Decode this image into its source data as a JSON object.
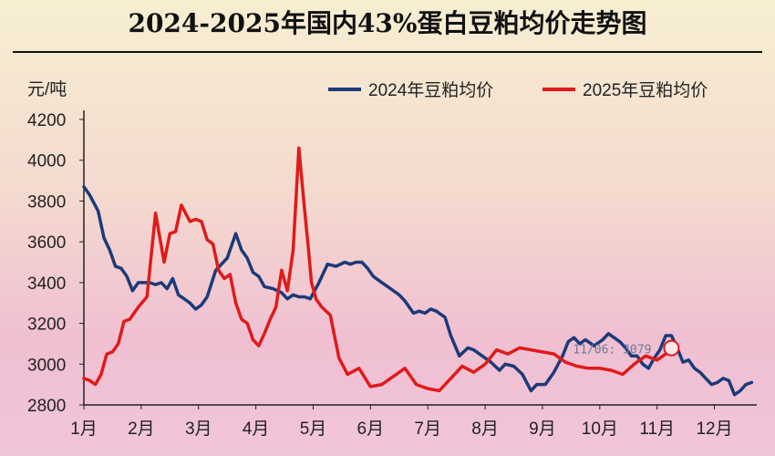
{
  "chart_data": {
    "type": "line",
    "title": "2024-2025年国内43%蛋白豆粕均价走势图",
    "ylabel": "元/吨",
    "xlabel": "",
    "ylim": [
      2800,
      4200
    ],
    "yticks": [
      2800,
      3000,
      3200,
      3400,
      3600,
      3800,
      4000,
      4200
    ],
    "categories": [
      "1月",
      "2月",
      "3月",
      "4月",
      "5月",
      "6月",
      "7月",
      "8月",
      "9月",
      "10月",
      "11月",
      "12月"
    ],
    "grid": false,
    "legend_position": "top-right",
    "annotation": {
      "label": "11/06: 3079",
      "x": 10.25,
      "y": 3079
    },
    "series": [
      {
        "name": "2024年豆粕均价",
        "color": "#1c3a78",
        "x": [
          0.0,
          0.1,
          0.25,
          0.35,
          0.45,
          0.55,
          0.65,
          0.75,
          0.85,
          0.95,
          1.05,
          1.15,
          1.25,
          1.35,
          1.45,
          1.55,
          1.65,
          1.75,
          1.85,
          1.95,
          2.05,
          2.15,
          2.3,
          2.5,
          2.65,
          2.75,
          2.85,
          2.95,
          3.05,
          3.15,
          3.3,
          3.45,
          3.55,
          3.65,
          3.75,
          3.85,
          3.95,
          4.1,
          4.25,
          4.4,
          4.55,
          4.65,
          4.75,
          4.85,
          4.95,
          5.05,
          5.2,
          5.35,
          5.5,
          5.6,
          5.75,
          5.85,
          5.95,
          6.05,
          6.15,
          6.3,
          6.4,
          6.55,
          6.7,
          6.8,
          6.9,
          7.0,
          7.1,
          7.25,
          7.35,
          7.5,
          7.65,
          7.8,
          7.9,
          8.05,
          8.2,
          8.35,
          8.45,
          8.55,
          8.65,
          8.75,
          8.9,
          9.05,
          9.15,
          9.25,
          9.35,
          9.45,
          9.55,
          9.65,
          9.75,
          9.85,
          9.95,
          10.05,
          10.15,
          10.25,
          10.35,
          10.45,
          10.55,
          10.65,
          10.75,
          10.85,
          10.95,
          11.05,
          11.15,
          11.25,
          11.35,
          11.45,
          11.55,
          11.65
        ],
        "y": [
          3870,
          3830,
          3750,
          3620,
          3560,
          3480,
          3470,
          3430,
          3360,
          3400,
          3400,
          3400,
          3390,
          3400,
          3370,
          3420,
          3340,
          3320,
          3300,
          3270,
          3290,
          3330,
          3460,
          3520,
          3640,
          3560,
          3520,
          3450,
          3430,
          3380,
          3370,
          3350,
          3320,
          3340,
          3330,
          3330,
          3320,
          3400,
          3490,
          3480,
          3500,
          3490,
          3500,
          3500,
          3470,
          3430,
          3400,
          3370,
          3340,
          3310,
          3250,
          3260,
          3250,
          3270,
          3260,
          3230,
          3140,
          3040,
          3080,
          3070,
          3050,
          3030,
          3010,
          2970,
          3000,
          2990,
          2950,
          2870,
          2900,
          2900,
          2960,
          3040,
          3110,
          3130,
          3100,
          3120,
          3090,
          3120,
          3150,
          3130,
          3110,
          3080,
          3040,
          3040,
          3000,
          2980,
          3030,
          3070,
          3140,
          3140,
          3080,
          3010,
          3020,
          2980,
          2960,
          2930,
          2900,
          2910,
          2930,
          2920,
          2850,
          2870,
          2900,
          2910
        ]
      },
      {
        "name": "2025年豆粕均价",
        "color": "#e01a1a",
        "x": [
          0.0,
          0.1,
          0.2,
          0.3,
          0.4,
          0.5,
          0.6,
          0.7,
          0.8,
          0.95,
          1.1,
          1.25,
          1.4,
          1.5,
          1.6,
          1.7,
          1.85,
          1.95,
          2.05,
          2.15,
          2.25,
          2.35,
          2.45,
          2.55,
          2.65,
          2.75,
          2.85,
          2.95,
          3.05,
          3.15,
          3.25,
          3.35,
          3.45,
          3.55,
          3.65,
          3.75,
          3.85,
          3.92,
          3.97,
          4.05,
          4.15,
          4.3,
          4.45,
          4.6,
          4.8,
          5.0,
          5.2,
          5.4,
          5.6,
          5.8,
          6.0,
          6.2,
          6.4,
          6.6,
          6.8,
          7.0,
          7.2,
          7.4,
          7.6,
          7.8,
          8.0,
          8.2,
          8.4,
          8.6,
          8.8,
          9.0,
          9.2,
          9.4,
          9.6,
          9.8,
          10.0,
          10.1,
          10.2,
          10.25
        ],
        "y": [
          2930,
          2920,
          2900,
          2950,
          3050,
          3060,
          3100,
          3210,
          3220,
          3280,
          3330,
          3740,
          3500,
          3640,
          3650,
          3780,
          3700,
          3710,
          3700,
          3610,
          3590,
          3460,
          3420,
          3440,
          3300,
          3220,
          3200,
          3120,
          3090,
          3150,
          3220,
          3280,
          3460,
          3360,
          3560,
          4060,
          3760,
          3560,
          3400,
          3320,
          3280,
          3240,
          3030,
          2950,
          2980,
          2890,
          2900,
          2940,
          2980,
          2900,
          2880,
          2870,
          2930,
          2990,
          2960,
          3000,
          3070,
          3050,
          3080,
          3070,
          3060,
          3050,
          3010,
          2990,
          2980,
          2980,
          2970,
          2950,
          3000,
          3040,
          3020,
          3040,
          3060,
          3079
        ]
      }
    ]
  }
}
